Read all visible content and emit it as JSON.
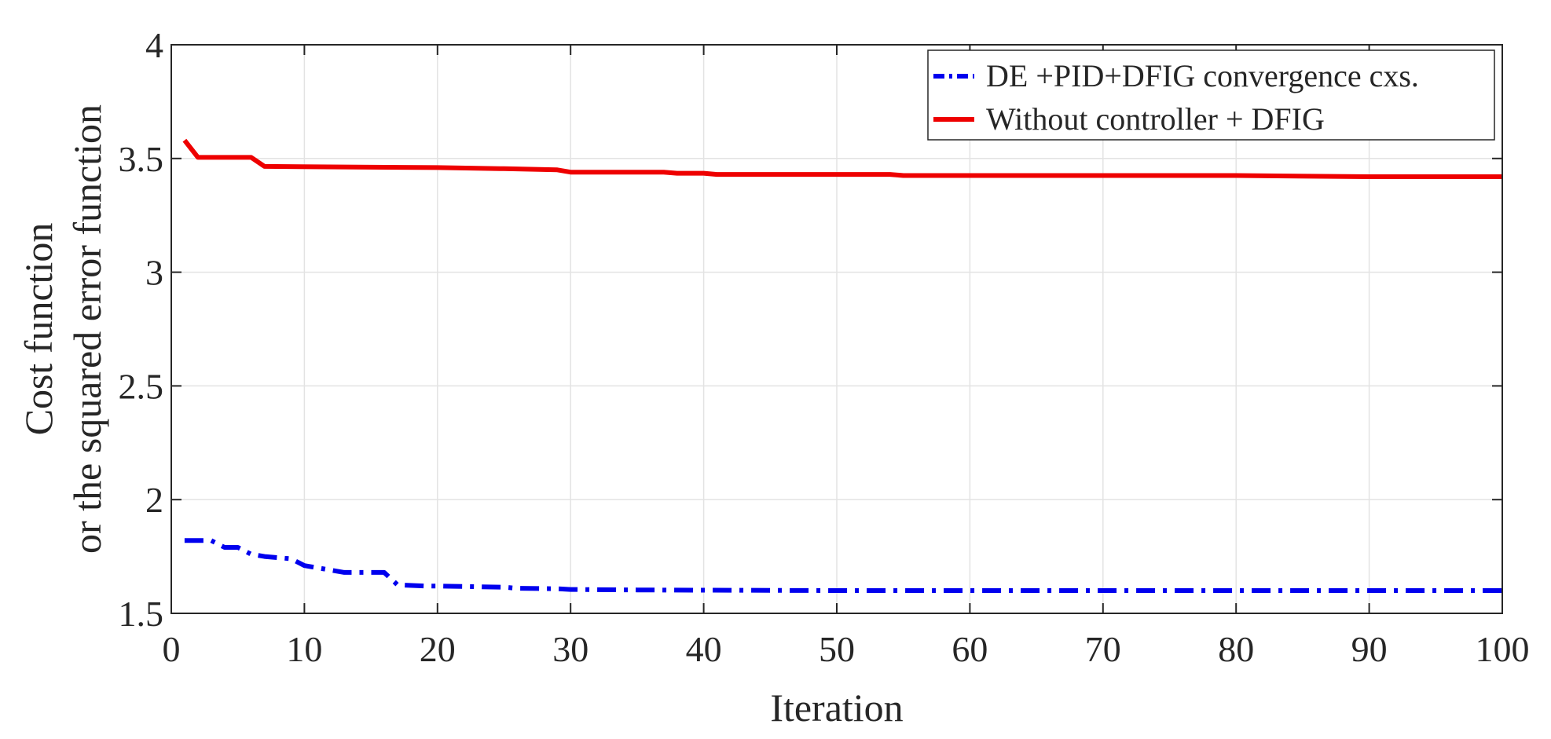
{
  "chart_data": {
    "type": "line",
    "title": "",
    "xlabel": "Iteration",
    "ylabel": [
      "Cost  function",
      "or the squared error function"
    ],
    "xlim": [
      0,
      100
    ],
    "ylim": [
      1.5,
      4
    ],
    "xticks": [
      0,
      10,
      20,
      30,
      40,
      50,
      60,
      70,
      80,
      90,
      100
    ],
    "yticks": [
      1.5,
      2,
      2.5,
      3,
      3.5,
      4
    ],
    "ytick_labels": [
      "1.5",
      "2",
      "2.5",
      "3",
      "3.5",
      "4"
    ],
    "grid": true,
    "legend_position": "top-right",
    "series": [
      {
        "name": "DE +PID+DFIG convergence cxs.",
        "color": "#0000ee",
        "style": "dash-dot",
        "x": [
          1,
          3,
          4,
          5,
          6,
          7,
          9,
          10,
          11,
          12,
          13,
          16,
          17,
          19,
          20,
          25,
          26,
          29,
          30,
          35,
          40,
          50,
          60,
          70,
          80,
          90,
          100
        ],
        "y": [
          1.82,
          1.82,
          1.79,
          1.79,
          1.76,
          1.75,
          1.74,
          1.71,
          1.7,
          1.69,
          1.68,
          1.68,
          1.625,
          1.62,
          1.62,
          1.615,
          1.61,
          1.608,
          1.605,
          1.603,
          1.602,
          1.6,
          1.6,
          1.6,
          1.6,
          1.6,
          1.6
        ]
      },
      {
        "name": "Without controller + DFIG",
        "color": "#ee0000",
        "style": "solid",
        "x": [
          1,
          2,
          6,
          7,
          20,
          25,
          29,
          30,
          37,
          38,
          40,
          41,
          54,
          55,
          80,
          90,
          100
        ],
        "y": [
          3.58,
          3.505,
          3.505,
          3.465,
          3.46,
          3.455,
          3.45,
          3.44,
          3.44,
          3.435,
          3.435,
          3.43,
          3.43,
          3.425,
          3.425,
          3.42,
          3.42
        ]
      }
    ]
  }
}
